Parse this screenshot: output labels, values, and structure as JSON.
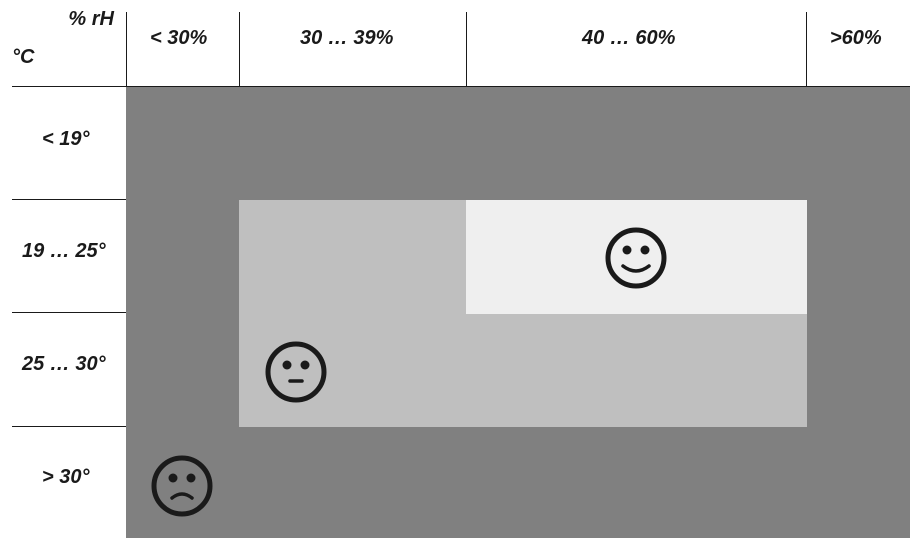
{
  "header": {
    "humidity_unit": "% rH",
    "temperature_unit": "°C"
  },
  "humidity_ranges": [
    "< 30%",
    "30 … 39%",
    "40 … 60%",
    ">60%"
  ],
  "temperature_ranges": [
    "< 19°",
    "19 … 25°",
    "25 … 30°",
    "> 30°"
  ],
  "zones": {
    "uncomfortable": {
      "color": "#808080",
      "face": "sad-face-icon"
    },
    "acceptable": {
      "color": "#bfbfbf",
      "face": "neutral-face-icon"
    },
    "comfortable": {
      "color": "#efefef",
      "face": "happy-face-icon"
    }
  }
}
